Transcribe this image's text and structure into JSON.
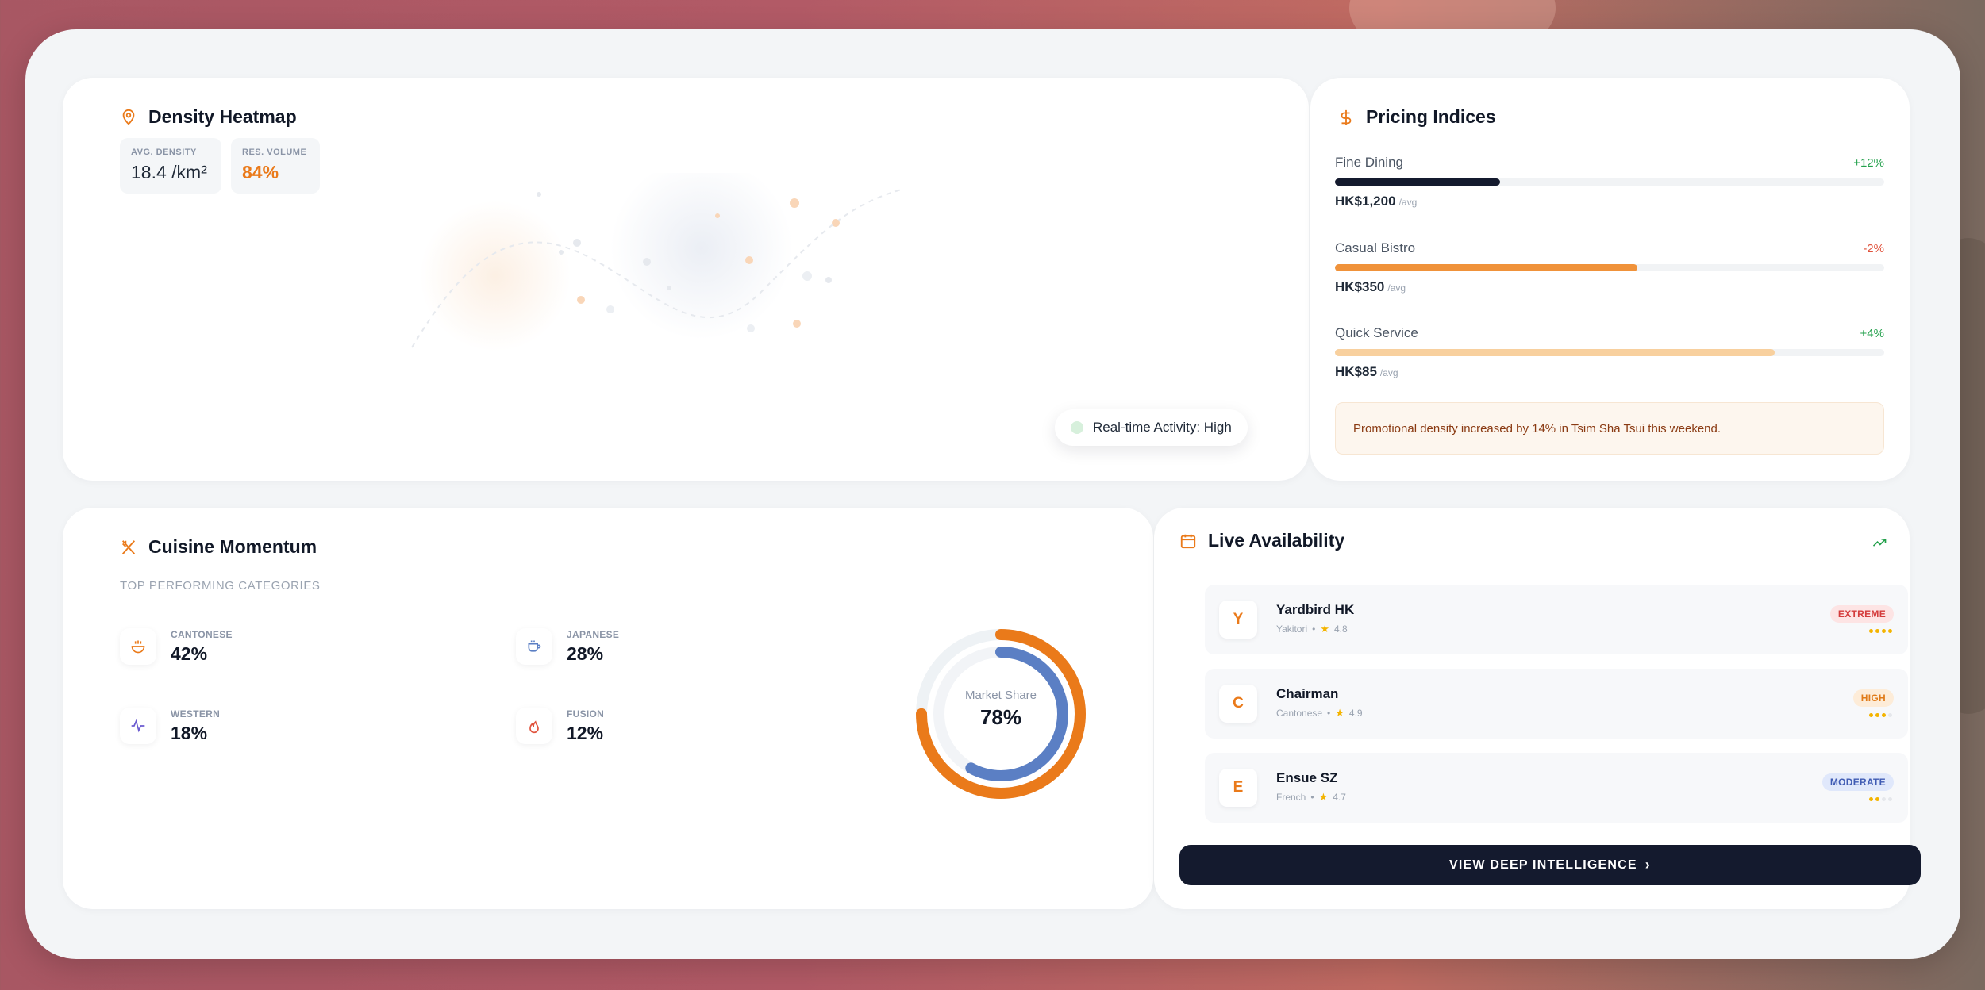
{
  "heatmap": {
    "title": "Density Heatmap",
    "metrics": [
      {
        "label": "AVG. DENSITY",
        "value": "18.4 /km²"
      },
      {
        "label": "RES. VOLUME",
        "value": "84%"
      }
    ],
    "activity": "Real-time Activity: High"
  },
  "pricing": {
    "title": "Pricing Indices",
    "rows": [
      {
        "name": "Fine Dining",
        "change": "+12%",
        "value": "HK$1,200",
        "unit": "/avg",
        "fill": 0.3,
        "color": "#141a2e",
        "change_color": "#22a04b"
      },
      {
        "name": "Casual Bistro",
        "change": "-2%",
        "value": "HK$350",
        "unit": "/avg",
        "fill": 0.55,
        "color": "#f0923a",
        "change_color": "#e0533d"
      },
      {
        "name": "Quick Service",
        "change": "+4%",
        "value": "HK$85",
        "unit": "/avg",
        "fill": 0.8,
        "color": "#f8d09e",
        "change_color": "#22a04b"
      }
    ],
    "promo": "Promotional density increased by 14% in Tsim Sha Tsui this weekend."
  },
  "cuisine": {
    "title": "Cuisine Momentum",
    "subtitle": "TOP PERFORMING CATEGORIES",
    "categories": [
      {
        "label": "CANTONESE",
        "value": "42%",
        "icon": "bowl-icon",
        "color": "#ea7a1a"
      },
      {
        "label": "JAPANESE",
        "value": "28%",
        "icon": "cup-icon",
        "color": "#5b7fc4"
      },
      {
        "label": "WESTERN",
        "value": "18%",
        "icon": "pulse-icon",
        "color": "#6b5bd0"
      },
      {
        "label": "FUSION",
        "value": "12%",
        "icon": "flame-icon",
        "color": "#e0533d"
      }
    ],
    "donut": {
      "caption": "Market Share",
      "value": "78%",
      "outer": 0.75,
      "inner": 0.58
    }
  },
  "availability": {
    "title": "Live Availability",
    "rows": [
      {
        "initial": "Y",
        "name": "Yardbird HK",
        "cuisine": "Yakitori",
        "rating": "4.8",
        "badge": "EXTREME",
        "badge_bg": "#fde4e4",
        "badge_fg": "#d43c3c",
        "level": 4
      },
      {
        "initial": "C",
        "name": "Chairman",
        "cuisine": "Cantonese",
        "rating": "4.9",
        "badge": "HIGH",
        "badge_bg": "#fdecd8",
        "badge_fg": "#e07a17",
        "level": 3
      },
      {
        "initial": "E",
        "name": "Ensue SZ",
        "cuisine": "French",
        "rating": "4.7",
        "badge": "MODERATE",
        "badge_bg": "#e0e8fb",
        "badge_fg": "#3f5bb3",
        "level": 2
      }
    ],
    "cta": "VIEW DEEP INTELLIGENCE"
  },
  "colors": {
    "accent": "#ea7a1a",
    "navy": "#141a2e",
    "blue": "#5b7fc4"
  }
}
